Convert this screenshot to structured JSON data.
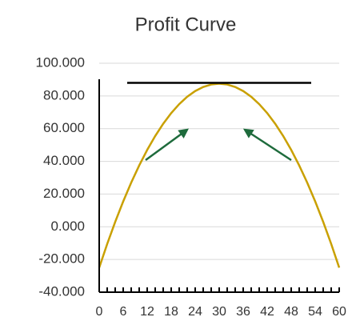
{
  "chart_data": {
    "type": "line",
    "title": "Profit Curve",
    "series": [
      {
        "color": "#c9a000",
        "x": [
          0,
          2,
          4,
          6,
          8,
          10,
          12,
          14,
          16,
          18,
          20,
          22,
          24,
          26,
          28,
          30,
          32,
          34,
          36,
          38,
          40,
          42,
          44,
          46,
          48,
          50,
          52,
          54,
          56,
          58,
          60
        ],
        "values": [
          -25,
          -10.5,
          3,
          15.5,
          27,
          37.5,
          47,
          55.5,
          63,
          69.5,
          75,
          79.5,
          83,
          85.5,
          87,
          87.5,
          87,
          85.5,
          83,
          79.5,
          75,
          69.5,
          63,
          55.5,
          47,
          37.5,
          27,
          15.5,
          3,
          -10.5,
          -25
        ]
      },
      {
        "color": "#000000",
        "x": [
          7,
          53
        ],
        "values": [
          88,
          88
        ]
      }
    ],
    "xlim": [
      0,
      60
    ],
    "xticks": [
      0,
      6,
      12,
      18,
      24,
      30,
      36,
      42,
      48,
      54,
      60
    ],
    "ylim": [
      -40,
      100
    ],
    "yticks": [
      {
        "value": -40,
        "label": "-40.000"
      },
      {
        "value": -20,
        "label": "-20.000"
      },
      {
        "value": 0,
        "label": "0.000"
      },
      {
        "value": 20,
        "label": "20.000"
      },
      {
        "value": 40,
        "label": "40.000"
      },
      {
        "value": 60,
        "label": "60.000"
      },
      {
        "value": 80,
        "label": "80.000"
      },
      {
        "value": 100,
        "label": "100.000"
      }
    ],
    "grid": true
  }
}
